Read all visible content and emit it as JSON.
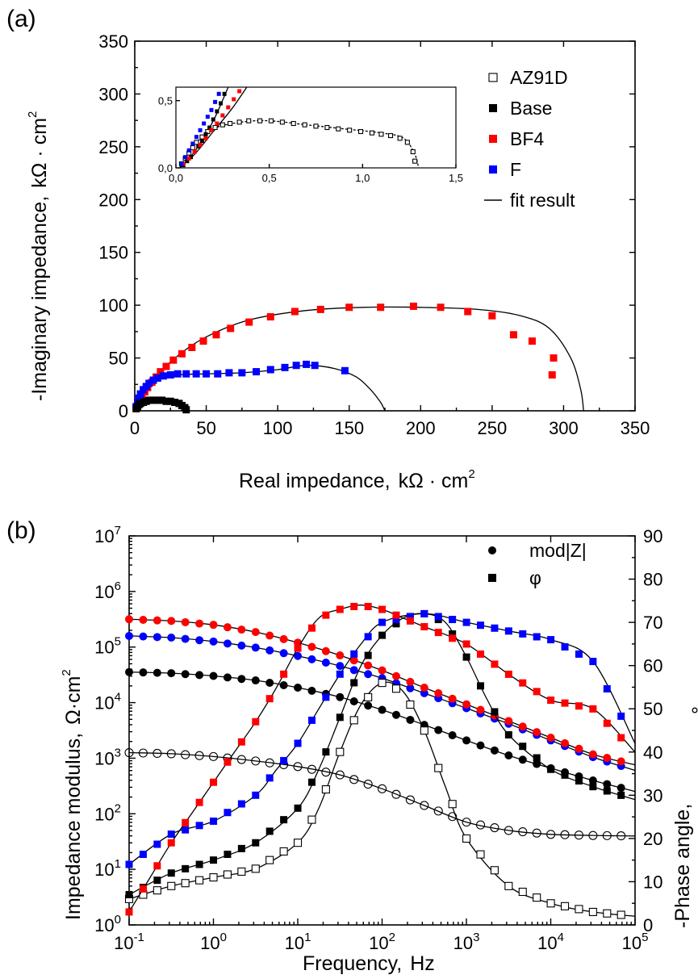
{
  "chart_data": [
    {
      "panel_label": "(a)",
      "type": "scatter",
      "xlabel": "Real impedance,",
      "xlabel_unit": "kΩ · cm",
      "ylabel": "-Imaginary impedance,",
      "ylabel_unit": "kΩ · cm",
      "unit_exponent": "2",
      "xlim": [
        0,
        350
      ],
      "ylim": [
        0,
        350
      ],
      "x_ticks": [
        "0",
        "50",
        "100",
        "150",
        "200",
        "250",
        "300",
        "350"
      ],
      "y_ticks": [
        "0",
        "50",
        "100",
        "150",
        "200",
        "250",
        "300",
        "350"
      ],
      "legend": [
        {
          "label": "AZ91D",
          "marker": "open-square",
          "color": "#000000"
        },
        {
          "label": "Base",
          "marker": "square",
          "color": "#000000"
        },
        {
          "label": "BF4",
          "marker": "square",
          "color": "#ff0000"
        },
        {
          "label": "F",
          "marker": "square",
          "color": "#0000ff"
        },
        {
          "label": "fit result",
          "marker": "line",
          "color": "#000000"
        }
      ],
      "series": [
        {
          "name": "BF4",
          "color": "#ff0000",
          "x": [
            1,
            2,
            3,
            5,
            7,
            9,
            12,
            15,
            18,
            22,
            27,
            33,
            40,
            48,
            57,
            67,
            80,
            95,
            112,
            130,
            150,
            172,
            195,
            214,
            233,
            250,
            265,
            278,
            293,
            292
          ],
          "y": [
            3,
            6,
            10,
            14,
            18,
            22,
            27,
            32,
            37,
            42,
            48,
            54,
            60,
            66,
            72,
            78,
            84,
            89,
            94,
            96,
            98,
            98,
            99,
            98,
            94,
            90,
            72,
            66,
            50,
            34
          ]
        },
        {
          "name": "F",
          "color": "#0000ff",
          "x": [
            1,
            2,
            3,
            4,
            6,
            8,
            10,
            13,
            16,
            20,
            25,
            30,
            36,
            43,
            50,
            58,
            66,
            75,
            85,
            95,
            105,
            113,
            120,
            126,
            147
          ],
          "y": [
            4,
            8,
            12,
            16,
            20,
            23,
            26,
            29,
            31,
            33,
            34,
            35,
            35,
            35,
            35,
            35,
            36,
            36,
            37,
            39,
            41,
            43,
            44,
            43,
            38
          ]
        },
        {
          "name": "Base",
          "color": "#000000",
          "x": [
            1,
            2,
            3,
            4,
            6,
            8,
            10,
            13,
            16,
            19,
            22,
            25,
            28,
            31,
            33,
            35,
            36
          ],
          "y": [
            2,
            4,
            6,
            7,
            8,
            9,
            10,
            10,
            10,
            10,
            9,
            9,
            8,
            7,
            5,
            3,
            1
          ]
        }
      ],
      "fits": [
        {
          "name": "BF4 fit",
          "x": [
            0,
            5,
            15,
            30,
            50,
            80,
            120,
            160,
            200,
            240,
            270,
            290,
            305,
            312,
            314
          ],
          "y": [
            0,
            15,
            33,
            52,
            70,
            86,
            95,
            98,
            98,
            96,
            90,
            78,
            50,
            20,
            0
          ]
        },
        {
          "name": "F fit",
          "x": [
            0,
            5,
            15,
            30,
            50,
            75,
            100,
            120,
            140,
            155,
            165,
            172,
            175
          ],
          "y": [
            0,
            20,
            30,
            34,
            35,
            36,
            39,
            43,
            40,
            32,
            20,
            8,
            0
          ]
        }
      ],
      "inset": {
        "xlim": [
          0,
          1.5
        ],
        "ylim": [
          0,
          0.6
        ],
        "x_ticks": [
          "0,0",
          "0,5",
          "1,0",
          "1,5"
        ],
        "y_ticks": [
          "0,0",
          "0,5"
        ],
        "series": [
          {
            "name": "AZ91D",
            "marker": "open-square",
            "color": "#000000",
            "x": [
              0.03,
              0.05,
              0.07,
              0.09,
              0.11,
              0.14,
              0.17,
              0.21,
              0.25,
              0.29,
              0.34,
              0.39,
              0.45,
              0.51,
              0.57,
              0.63,
              0.69,
              0.75,
              0.81,
              0.87,
              0.93,
              0.99,
              1.05,
              1.1,
              1.15,
              1.2,
              1.24,
              1.27,
              1.28
            ],
            "y": [
              0.03,
              0.07,
              0.11,
              0.15,
              0.19,
              0.23,
              0.27,
              0.3,
              0.32,
              0.33,
              0.34,
              0.35,
              0.35,
              0.35,
              0.34,
              0.33,
              0.32,
              0.31,
              0.3,
              0.29,
              0.28,
              0.27,
              0.26,
              0.25,
              0.24,
              0.22,
              0.19,
              0.12,
              0.05
            ]
          },
          {
            "name": "Base",
            "marker": "square",
            "color": "#000000",
            "x": [
              0.04,
              0.06,
              0.08,
              0.1,
              0.12,
              0.14,
              0.16,
              0.18,
              0.2,
              0.22,
              0.24,
              0.26
            ],
            "y": [
              0.02,
              0.05,
              0.08,
              0.12,
              0.16,
              0.2,
              0.25,
              0.3,
              0.36,
              0.42,
              0.48,
              0.55
            ]
          },
          {
            "name": "BF4",
            "marker": "square",
            "color": "#ff0000",
            "x": [
              0.04,
              0.07,
              0.1,
              0.13,
              0.16,
              0.19,
              0.22,
              0.25,
              0.28,
              0.31,
              0.34
            ],
            "y": [
              0.03,
              0.07,
              0.12,
              0.17,
              0.22,
              0.28,
              0.33,
              0.39,
              0.45,
              0.51,
              0.57
            ]
          },
          {
            "name": "F",
            "marker": "square",
            "color": "#0000ff",
            "x": [
              0.03,
              0.05,
              0.07,
              0.09,
              0.11,
              0.13,
              0.15,
              0.17,
              0.19,
              0.21,
              0.23
            ],
            "y": [
              0.03,
              0.08,
              0.13,
              0.18,
              0.23,
              0.28,
              0.33,
              0.38,
              0.43,
              0.49,
              0.55
            ]
          }
        ],
        "fits": [
          {
            "name": "AZ91D fit",
            "x": [
              0.02,
              0.1,
              0.2,
              0.35,
              0.5,
              0.7,
              0.9,
              1.1,
              1.22,
              1.28,
              1.3
            ],
            "y": [
              0,
              0.17,
              0.29,
              0.34,
              0.35,
              0.32,
              0.29,
              0.26,
              0.22,
              0.1,
              0
            ]
          },
          {
            "name": "steep fit",
            "x": [
              0.02,
              0.1,
              0.2,
              0.28
            ],
            "y": [
              0,
              0.12,
              0.35,
              0.6
            ]
          },
          {
            "name": "BF4 inset fit",
            "x": [
              0.02,
              0.1,
              0.2,
              0.3,
              0.38
            ],
            "y": [
              0,
              0.1,
              0.27,
              0.44,
              0.6
            ]
          }
        ]
      }
    },
    {
      "panel_label": "(b)",
      "type": "scatter",
      "xscale": "log",
      "yscale": "log",
      "xlabel": "Frequency,",
      "xlabel_unit": "Hz",
      "ylabel": "Impedance modulus,",
      "ylabel_unit": "Ω·cm",
      "ylabel_exponent": "2",
      "y2label": "-Phase angle,",
      "y2label_unit": "°",
      "xlim": [
        0.1,
        100000
      ],
      "ylim": [
        1,
        10000000
      ],
      "y2lim": [
        0,
        90
      ],
      "x_ticks": [
        {
          "base": "10",
          "exp": "-1"
        },
        {
          "base": "10",
          "exp": "0"
        },
        {
          "base": "10",
          "exp": "1"
        },
        {
          "base": "10",
          "exp": "2"
        },
        {
          "base": "10",
          "exp": "3"
        },
        {
          "base": "10",
          "exp": "4"
        },
        {
          "base": "10",
          "exp": "5"
        }
      ],
      "y_ticks": [
        {
          "base": "10",
          "exp": "0"
        },
        {
          "base": "10",
          "exp": "1"
        },
        {
          "base": "10",
          "exp": "2"
        },
        {
          "base": "10",
          "exp": "3"
        },
        {
          "base": "10",
          "exp": "4"
        },
        {
          "base": "10",
          "exp": "5"
        },
        {
          "base": "10",
          "exp": "6"
        },
        {
          "base": "10",
          "exp": "7"
        }
      ],
      "y2_ticks": [
        "0",
        "10",
        "20",
        "30",
        "40",
        "50",
        "60",
        "70",
        "80",
        "90"
      ],
      "legend": [
        {
          "label": "mod|Z|",
          "marker": "circle"
        },
        {
          "label": "φ",
          "marker": "square"
        }
      ],
      "modulus_series": [
        {
          "name": "AZ91D",
          "marker": "open-circle",
          "color": "#000000",
          "log_f": [
            -1,
            5
          ],
          "log_z_start": 3.1,
          "log_z_end": 1.6,
          "shape": [
            3.1,
            3.08,
            3.03,
            2.95,
            2.85,
            2.7,
            2.45,
            2.15,
            1.85,
            1.7,
            1.63,
            1.61,
            1.6
          ]
        },
        {
          "name": "Base",
          "marker": "circle",
          "color": "#000000",
          "shape": [
            4.55,
            4.53,
            4.48,
            4.4,
            4.27,
            4.1,
            3.87,
            3.6,
            3.32,
            3.05,
            2.82,
            2.6,
            2.4
          ]
        },
        {
          "name": "F",
          "marker": "circle",
          "color": "#0000ff",
          "shape": [
            5.2,
            5.17,
            5.1,
            4.99,
            4.84,
            4.66,
            4.44,
            4.17,
            3.9,
            3.62,
            3.32,
            3.02,
            2.78
          ]
        },
        {
          "name": "BF4",
          "marker": "circle",
          "color": "#ff0000",
          "shape": [
            5.5,
            5.47,
            5.4,
            5.27,
            5.08,
            4.85,
            4.58,
            4.27,
            3.97,
            3.67,
            3.37,
            3.07,
            2.88
          ]
        }
      ],
      "phase_series": [
        {
          "name": "AZ91D",
          "marker": "open-square",
          "color": "#000000",
          "log_f": [
            -1,
            -0.5,
            0,
            0.5,
            1,
            1.25,
            1.5,
            1.75,
            2,
            2.25,
            2.5,
            2.75,
            3,
            3.5,
            4,
            4.5,
            5
          ],
          "phase": [
            6,
            9,
            11,
            13,
            19,
            27,
            40,
            51,
            56,
            54,
            45,
            32,
            20,
            9,
            5,
            3,
            2
          ]
        },
        {
          "name": "Base",
          "marker": "square",
          "color": "#000000",
          "log_f": [
            -1,
            -0.5,
            0,
            0.5,
            1,
            1.25,
            1.5,
            1.75,
            2,
            2.25,
            2.5,
            2.75,
            3,
            3.25,
            3.5,
            4,
            4.5,
            5
          ],
          "phase": [
            7,
            12,
            15,
            19,
            27,
            36,
            48,
            60,
            67,
            71,
            72,
            70,
            62,
            52,
            44,
            36,
            32,
            29
          ]
        },
        {
          "name": "F",
          "marker": "square",
          "color": "#0000ff",
          "log_f": [
            -1,
            -0.5,
            0,
            0.5,
            0.75,
            1,
            1.25,
            1.5,
            1.75,
            2,
            2.5,
            3,
            3.5,
            4,
            4.5,
            5
          ],
          "phase": [
            14,
            21,
            24,
            30,
            36,
            42,
            50,
            58,
            65,
            70,
            72,
            70,
            68,
            66,
            61,
            42
          ]
        },
        {
          "name": "BF4",
          "marker": "square",
          "color": "#ff0000",
          "log_f": [
            -1,
            -0.75,
            -0.5,
            -0.25,
            0,
            0.25,
            0.5,
            0.75,
            1,
            1.25,
            1.5,
            1.75,
            2,
            2.25,
            2.5,
            3,
            3.5,
            4,
            4.5,
            5
          ],
          "phase": [
            3,
            11,
            19,
            26,
            33,
            40,
            47,
            55,
            64,
            71,
            73,
            74,
            73,
            71,
            69,
            65,
            58,
            52,
            50,
            40
          ]
        }
      ]
    }
  ]
}
